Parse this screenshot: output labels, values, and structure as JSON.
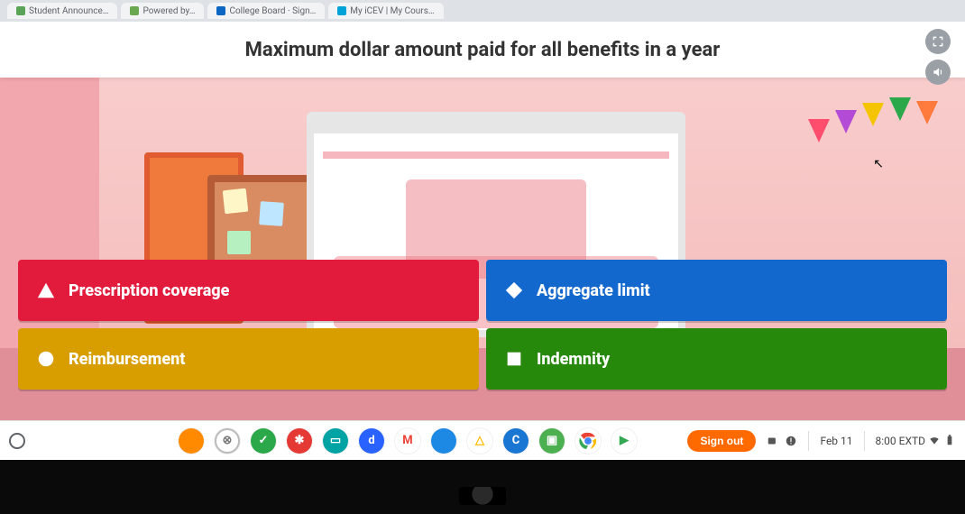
{
  "tabs": [
    {
      "label": "Student Announce…",
      "favicon": "#5aa457"
    },
    {
      "label": "Powered by…",
      "favicon": "#6aa84f"
    },
    {
      "label": "College Board · Sign…",
      "favicon": "#0a66c2"
    },
    {
      "label": "My iCEV | My Cours…",
      "favicon": "#00a3d7"
    }
  ],
  "question": "Maximum dollar amount paid for all benefits in a year",
  "controls": {
    "fullscreen_tooltip": "Fullscreen",
    "volume_tooltip": "Volume"
  },
  "answers": [
    {
      "shape": "triangle",
      "label": "Prescription coverage",
      "color": "#e21b3c"
    },
    {
      "shape": "diamond",
      "label": "Aggregate limit",
      "color": "#1368ce"
    },
    {
      "shape": "circle",
      "label": "Reimbursement",
      "color": "#d89e00"
    },
    {
      "shape": "square",
      "label": "Indemnity",
      "color": "#26890c"
    }
  ],
  "shelf": {
    "icons": [
      {
        "bg": "#ff8a00",
        "glyph": "",
        "name": "app-orange"
      },
      {
        "bg": "#ffffff",
        "glyph": "⊗",
        "fg": "#7a7a7a",
        "ring": true,
        "name": "app-circle"
      },
      {
        "bg": "#2aa84a",
        "glyph": "✓",
        "name": "app-green-check"
      },
      {
        "bg": "#e53935",
        "glyph": "✱",
        "name": "app-red"
      },
      {
        "bg": "#00a3a3",
        "glyph": "▭",
        "name": "app-teal"
      },
      {
        "bg": "#2962ff",
        "glyph": "d",
        "name": "app-d"
      },
      {
        "bg": "#ffffff",
        "glyph": "M",
        "fg": "#ea4335",
        "name": "gmail"
      },
      {
        "bg": "#1e88e5",
        "glyph": "",
        "name": "files"
      },
      {
        "bg": "#ffffff",
        "glyph": "△",
        "fg": "#fbbc04",
        "name": "drive"
      },
      {
        "bg": "#1976d2",
        "glyph": "C",
        "name": "classroom-c"
      },
      {
        "bg": "#4caf50",
        "glyph": "▣",
        "name": "classroom"
      },
      {
        "bg": "#ffffff",
        "glyph": "",
        "name": "chrome",
        "chrome": true
      },
      {
        "bg": "#ffffff",
        "glyph": "▶",
        "fg": "#34a853",
        "name": "play-store"
      }
    ],
    "signout": "Sign out",
    "date": "Feb 11",
    "time": "8:00",
    "tz": "EXTD"
  },
  "styling": {
    "question_fontsize": 22,
    "answer_fontsize": 18,
    "answer_height": 68,
    "grid_gap": 8,
    "background_tint": "#f7c7c7",
    "question_bar_bg": "#ffffff"
  }
}
